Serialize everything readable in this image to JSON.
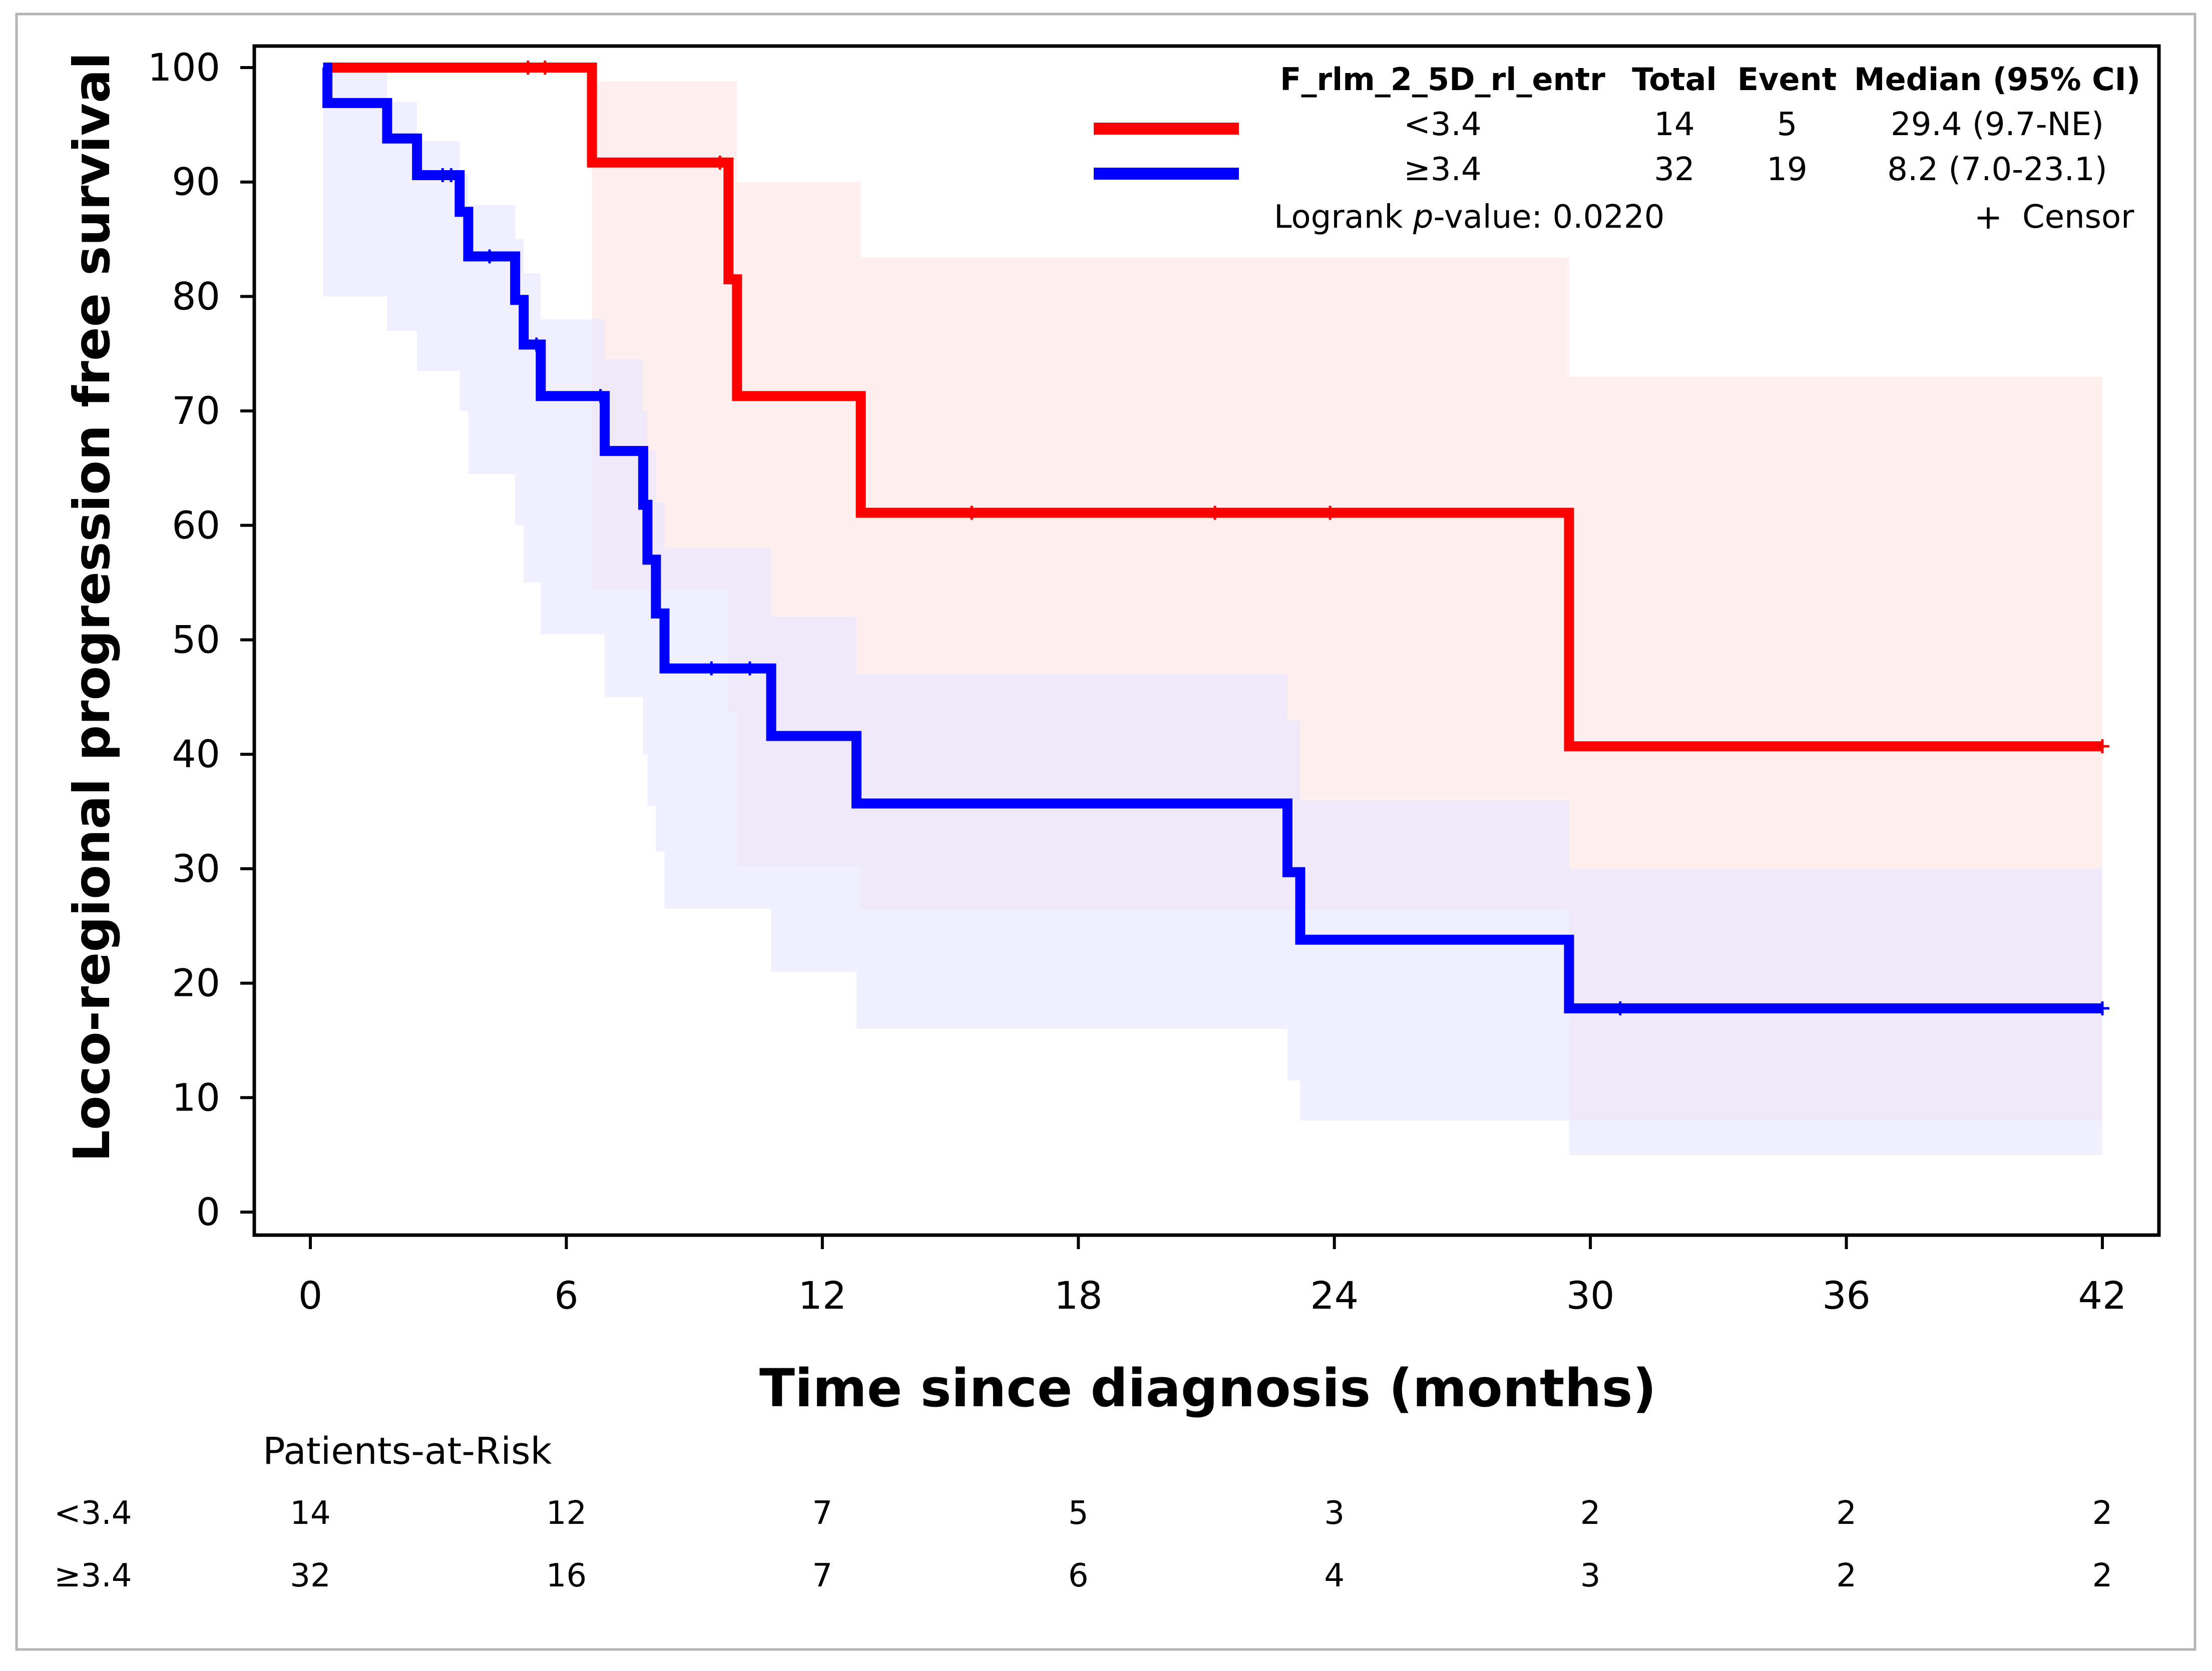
{
  "chart_data": {
    "type": "line",
    "subtype": "kaplan-meier",
    "xlabel": "Time since diagnosis (months)",
    "ylabel": "Loco-regional progression free survival",
    "xlim": [
      0,
      42
    ],
    "ylim": [
      0,
      100
    ],
    "xticks": [
      0,
      6,
      12,
      18,
      24,
      30,
      36,
      42
    ],
    "yticks": [
      0,
      10,
      20,
      30,
      40,
      50,
      60,
      70,
      80,
      90,
      100
    ],
    "legend": {
      "position": "top-right",
      "headers": [
        "F_rlm_2_5D_rl_entr",
        "Total",
        "Event",
        "Median (95% CI)"
      ],
      "censor_symbol": "+",
      "censor_label": "Censor",
      "logrank_prefix": "Logrank ",
      "logrank_p": "p",
      "logrank_suffix": "-value: 0.0220"
    },
    "series": [
      {
        "name": "<3.4",
        "color": "#ff0000",
        "band_color": "#ffe5e5",
        "total": "14",
        "event": "5",
        "median": "29.4 (9.7-NE)",
        "steps": [
          [
            0.3,
            100
          ],
          [
            6.6,
            91.7
          ],
          [
            9.8,
            81.5
          ],
          [
            10.0,
            71.3
          ],
          [
            12.9,
            61.1
          ],
          [
            29.5,
            40.7
          ],
          [
            42,
            40.7
          ]
        ],
        "band": [
          [
            0.3,
            100,
            100
          ],
          [
            6.6,
            98.8,
            54.4
          ],
          [
            9.8,
            98.8,
            43.7
          ],
          [
            10.0,
            90.0,
            30.3
          ],
          [
            12.9,
            83.4,
            26.4
          ],
          [
            29.5,
            73.0,
            8.0
          ],
          [
            42,
            73.0,
            8.0
          ]
        ],
        "censors": [
          [
            5.1,
            100
          ],
          [
            5.5,
            100
          ],
          [
            9.6,
            91.7
          ],
          [
            15.5,
            61.1
          ],
          [
            21.2,
            61.1
          ],
          [
            23.9,
            61.1
          ],
          [
            42,
            40.7
          ]
        ]
      },
      {
        "name": "≥3.4",
        "color": "#0000ff",
        "band_color": "#e5e5ff",
        "total": "32",
        "event": "19",
        "median": "8.2 (7.0-23.1)",
        "steps": [
          [
            0.3,
            100
          ],
          [
            0.4,
            96.9
          ],
          [
            1.8,
            93.8
          ],
          [
            2.5,
            90.6
          ],
          [
            3.5,
            87.4
          ],
          [
            3.7,
            83.5
          ],
          [
            4.8,
            79.7
          ],
          [
            5.0,
            75.8
          ],
          [
            5.4,
            71.3
          ],
          [
            6.9,
            66.5
          ],
          [
            7.8,
            61.8
          ],
          [
            7.9,
            57.0
          ],
          [
            8.1,
            52.3
          ],
          [
            8.3,
            47.5
          ],
          [
            10.8,
            41.6
          ],
          [
            12.8,
            35.7
          ],
          [
            22.9,
            29.7
          ],
          [
            23.2,
            23.8
          ],
          [
            29.5,
            17.8
          ],
          [
            42,
            17.8
          ]
        ],
        "band": [
          [
            0.3,
            100,
            80
          ],
          [
            1.8,
            97,
            77
          ],
          [
            2.5,
            93.6,
            73.5
          ],
          [
            3.5,
            90.7,
            70
          ],
          [
            3.7,
            88,
            64.5
          ],
          [
            4.8,
            85,
            60
          ],
          [
            5.0,
            82,
            55
          ],
          [
            5.4,
            78,
            50.5
          ],
          [
            6.9,
            74.5,
            45
          ],
          [
            7.8,
            70,
            40
          ],
          [
            7.9,
            66.5,
            35.5
          ],
          [
            8.1,
            62,
            31.5
          ],
          [
            8.3,
            58,
            26.5
          ],
          [
            10.8,
            52,
            21
          ],
          [
            12.8,
            47,
            16
          ],
          [
            22.9,
            43,
            11.5
          ],
          [
            23.2,
            36,
            8
          ],
          [
            29.5,
            30,
            5
          ],
          [
            42,
            30,
            5
          ]
        ],
        "censors": [
          [
            3.1,
            90.6
          ],
          [
            3.3,
            90.6
          ],
          [
            4.2,
            83.5
          ],
          [
            5.3,
            75.8
          ],
          [
            6.8,
            71.3
          ],
          [
            9.4,
            47.5
          ],
          [
            10.3,
            47.5
          ],
          [
            30.7,
            17.8
          ],
          [
            42,
            17.8
          ]
        ]
      }
    ],
    "patients_at_risk": {
      "title": "Patients-at-Risk",
      "times": [
        0,
        6,
        12,
        18,
        24,
        30,
        36,
        42
      ],
      "rows": [
        {
          "label": "<3.4",
          "values": [
            "14",
            "12",
            "7",
            "5",
            "3",
            "2",
            "2",
            "2"
          ]
        },
        {
          "label": "≥3.4",
          "values": [
            "32",
            "16",
            "7",
            "6",
            "4",
            "3",
            "2",
            "2"
          ]
        }
      ]
    }
  }
}
